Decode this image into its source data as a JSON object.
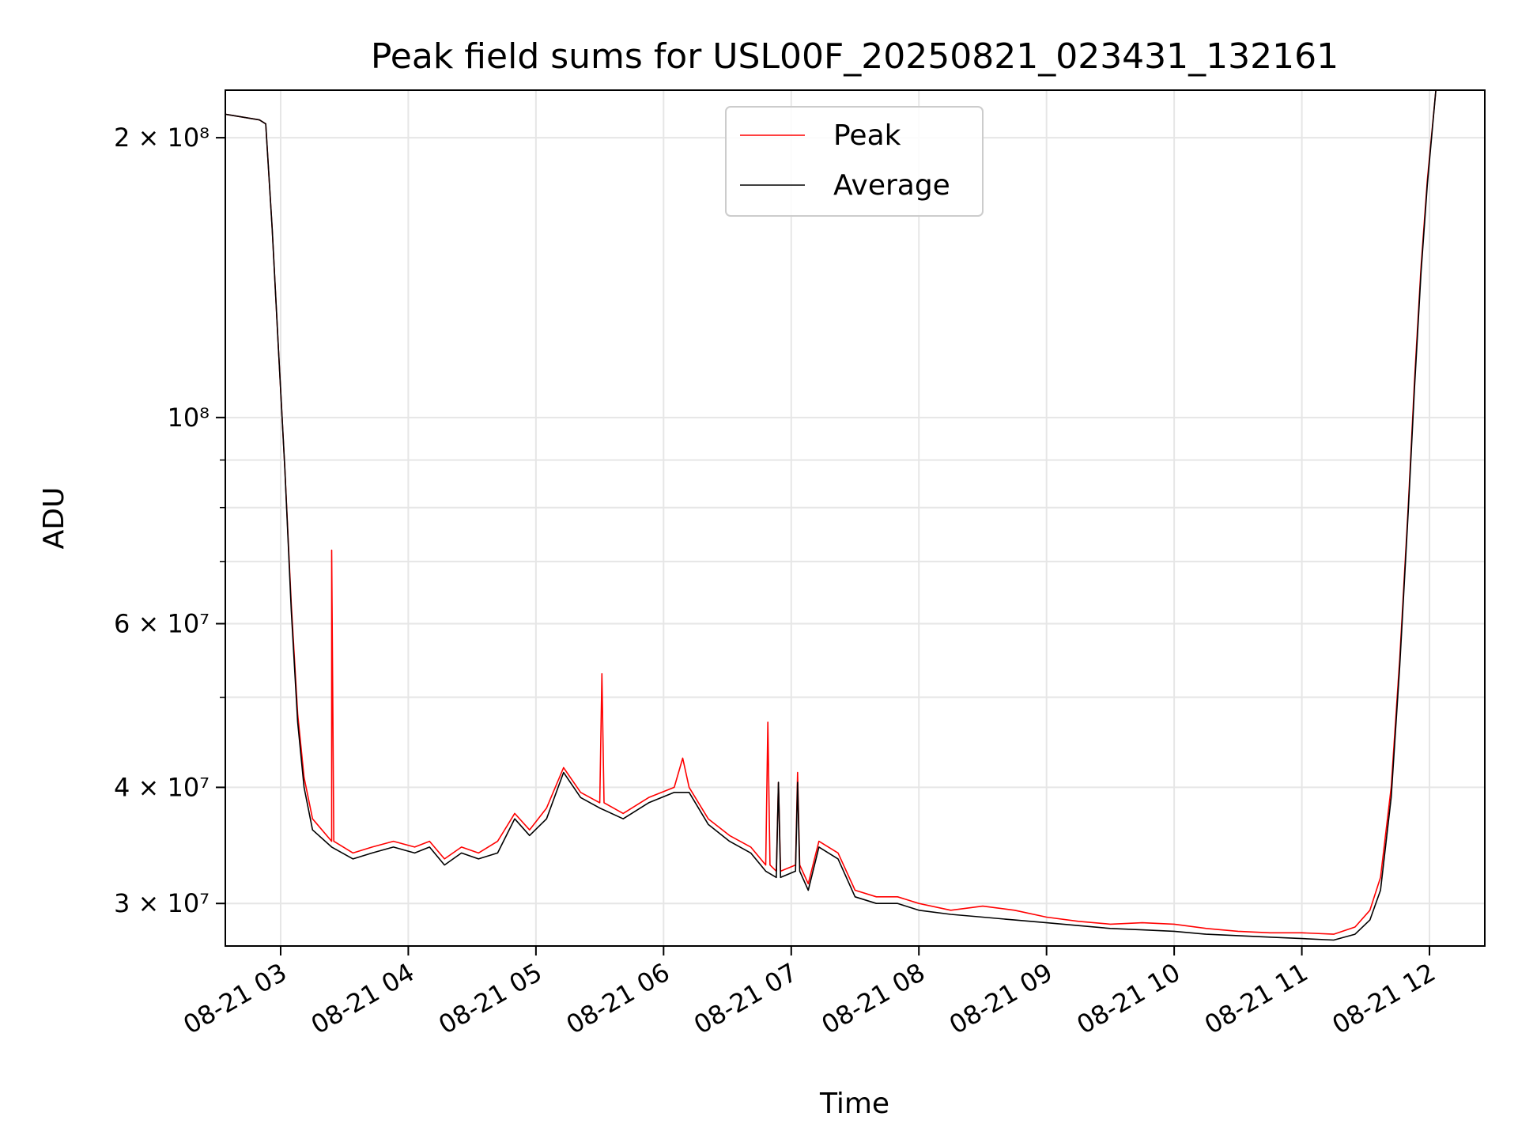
{
  "chart_data": {
    "type": "line",
    "title": "Peak field sums for USL00F_20250821_023431_132161",
    "xlabel": "Time",
    "ylabel": "ADU",
    "yscale": "log",
    "xlim": [
      "2025-08-21 02:34",
      "2025-08-21 12:26"
    ],
    "ylim": [
      27000000,
      225000000
    ],
    "grid": true,
    "legend_position": "upper center",
    "x_ticks": [
      {
        "value": "2025-08-21 03:00",
        "label": "08-21 03"
      },
      {
        "value": "2025-08-21 04:00",
        "label": "08-21 04"
      },
      {
        "value": "2025-08-21 05:00",
        "label": "08-21 05"
      },
      {
        "value": "2025-08-21 06:00",
        "label": "08-21 06"
      },
      {
        "value": "2025-08-21 07:00",
        "label": "08-21 07"
      },
      {
        "value": "2025-08-21 08:00",
        "label": "08-21 08"
      },
      {
        "value": "2025-08-21 09:00",
        "label": "08-21 09"
      },
      {
        "value": "2025-08-21 10:00",
        "label": "08-21 10"
      },
      {
        "value": "2025-08-21 11:00",
        "label": "08-21 11"
      },
      {
        "value": "2025-08-21 12:00",
        "label": "08-21 12"
      }
    ],
    "y_major_ticks": [
      {
        "value": 30000000,
        "label": "3 × 10⁷"
      },
      {
        "value": 40000000,
        "label": "4 × 10⁷"
      },
      {
        "value": 60000000,
        "label": "6 × 10⁷"
      },
      {
        "value": 100000000,
        "label": "10⁸"
      },
      {
        "value": 200000000,
        "label": "2 × 10⁸"
      }
    ],
    "y_minor_ticks": [
      50000000,
      70000000,
      80000000,
      90000000
    ],
    "series": [
      {
        "name": "Peak",
        "color": "#ff0000",
        "points": [
          [
            "2025-08-21 02:34",
            212000000
          ],
          [
            "2025-08-21 02:50",
            209000000
          ],
          [
            "2025-08-21 02:53",
            207000000
          ],
          [
            "2025-08-21 02:56",
            160000000
          ],
          [
            "2025-08-21 02:59",
            118000000
          ],
          [
            "2025-08-21 03:02",
            88000000
          ],
          [
            "2025-08-21 03:05",
            63000000
          ],
          [
            "2025-08-21 03:08",
            48000000
          ],
          [
            "2025-08-21 03:11",
            41000000
          ],
          [
            "2025-08-21 03:15",
            37000000
          ],
          [
            "2025-08-21 03:24",
            35000000
          ],
          [
            "2025-08-21 03:24",
            72000000
          ],
          [
            "2025-08-21 03:25",
            35000000
          ],
          [
            "2025-08-21 03:34",
            34000000
          ],
          [
            "2025-08-21 03:43",
            34500000
          ],
          [
            "2025-08-21 03:53",
            35000000
          ],
          [
            "2025-08-21 04:03",
            34500000
          ],
          [
            "2025-08-21 04:10",
            35000000
          ],
          [
            "2025-08-21 04:17",
            33500000
          ],
          [
            "2025-08-21 04:25",
            34500000
          ],
          [
            "2025-08-21 04:33",
            34000000
          ],
          [
            "2025-08-21 04:42",
            35000000
          ],
          [
            "2025-08-21 04:50",
            37500000
          ],
          [
            "2025-08-21 04:57",
            36000000
          ],
          [
            "2025-08-21 05:05",
            38000000
          ],
          [
            "2025-08-21 05:13",
            42000000
          ],
          [
            "2025-08-21 05:21",
            39500000
          ],
          [
            "2025-08-21 05:30",
            38500000
          ],
          [
            "2025-08-21 05:31",
            53000000
          ],
          [
            "2025-08-21 05:32",
            38500000
          ],
          [
            "2025-08-21 05:41",
            37500000
          ],
          [
            "2025-08-21 05:53",
            39000000
          ],
          [
            "2025-08-21 06:05",
            40000000
          ],
          [
            "2025-08-21 06:09",
            43000000
          ],
          [
            "2025-08-21 06:12",
            40000000
          ],
          [
            "2025-08-21 06:21",
            37000000
          ],
          [
            "2025-08-21 06:31",
            35500000
          ],
          [
            "2025-08-21 06:41",
            34500000
          ],
          [
            "2025-08-21 06:48",
            33000000
          ],
          [
            "2025-08-21 06:49",
            47000000
          ],
          [
            "2025-08-21 06:50",
            33000000
          ],
          [
            "2025-08-21 06:53",
            32500000
          ],
          [
            "2025-08-21 06:54",
            40500000
          ],
          [
            "2025-08-21 06:55",
            32500000
          ],
          [
            "2025-08-21 07:02",
            33000000
          ],
          [
            "2025-08-21 07:03",
            41500000
          ],
          [
            "2025-08-21 07:04",
            33000000
          ],
          [
            "2025-08-21 07:08",
            31500000
          ],
          [
            "2025-08-21 07:13",
            35000000
          ],
          [
            "2025-08-21 07:22",
            34000000
          ],
          [
            "2025-08-21 07:30",
            31000000
          ],
          [
            "2025-08-21 07:40",
            30500000
          ],
          [
            "2025-08-21 07:50",
            30500000
          ],
          [
            "2025-08-21 08:00",
            30000000
          ],
          [
            "2025-08-21 08:15",
            29500000
          ],
          [
            "2025-08-21 08:30",
            29800000
          ],
          [
            "2025-08-21 08:45",
            29500000
          ],
          [
            "2025-08-21 09:00",
            29000000
          ],
          [
            "2025-08-21 09:15",
            28700000
          ],
          [
            "2025-08-21 09:30",
            28500000
          ],
          [
            "2025-08-21 09:45",
            28600000
          ],
          [
            "2025-08-21 10:00",
            28500000
          ],
          [
            "2025-08-21 10:15",
            28200000
          ],
          [
            "2025-08-21 10:30",
            28000000
          ],
          [
            "2025-08-21 10:45",
            27900000
          ],
          [
            "2025-08-21 11:00",
            27900000
          ],
          [
            "2025-08-21 11:15",
            27800000
          ],
          [
            "2025-08-21 11:25",
            28300000
          ],
          [
            "2025-08-21 11:32",
            29500000
          ],
          [
            "2025-08-21 11:37",
            32000000
          ],
          [
            "2025-08-21 11:42",
            40000000
          ],
          [
            "2025-08-21 11:46",
            55000000
          ],
          [
            "2025-08-21 11:50",
            80000000
          ],
          [
            "2025-08-21 11:53",
            110000000
          ],
          [
            "2025-08-21 11:56",
            145000000
          ],
          [
            "2025-08-21 11:59",
            180000000
          ],
          [
            "2025-08-21 12:03",
            225000000
          ]
        ]
      },
      {
        "name": "Average",
        "color": "#000000",
        "points": [
          [
            "2025-08-21 02:34",
            212000000
          ],
          [
            "2025-08-21 02:50",
            209000000
          ],
          [
            "2025-08-21 02:53",
            207000000
          ],
          [
            "2025-08-21 02:56",
            160000000
          ],
          [
            "2025-08-21 02:59",
            118000000
          ],
          [
            "2025-08-21 03:02",
            88000000
          ],
          [
            "2025-08-21 03:05",
            62000000
          ],
          [
            "2025-08-21 03:08",
            47000000
          ],
          [
            "2025-08-21 03:11",
            40000000
          ],
          [
            "2025-08-21 03:15",
            36000000
          ],
          [
            "2025-08-21 03:24",
            34500000
          ],
          [
            "2025-08-21 03:34",
            33500000
          ],
          [
            "2025-08-21 03:43",
            34000000
          ],
          [
            "2025-08-21 03:53",
            34500000
          ],
          [
            "2025-08-21 04:03",
            34000000
          ],
          [
            "2025-08-21 04:10",
            34500000
          ],
          [
            "2025-08-21 04:17",
            33000000
          ],
          [
            "2025-08-21 04:25",
            34000000
          ],
          [
            "2025-08-21 04:33",
            33500000
          ],
          [
            "2025-08-21 04:42",
            34000000
          ],
          [
            "2025-08-21 04:50",
            37000000
          ],
          [
            "2025-08-21 04:57",
            35500000
          ],
          [
            "2025-08-21 05:05",
            37000000
          ],
          [
            "2025-08-21 05:13",
            41500000
          ],
          [
            "2025-08-21 05:21",
            39000000
          ],
          [
            "2025-08-21 05:30",
            38000000
          ],
          [
            "2025-08-21 05:41",
            37000000
          ],
          [
            "2025-08-21 05:53",
            38500000
          ],
          [
            "2025-08-21 06:05",
            39500000
          ],
          [
            "2025-08-21 06:12",
            39500000
          ],
          [
            "2025-08-21 06:21",
            36500000
          ],
          [
            "2025-08-21 06:31",
            35000000
          ],
          [
            "2025-08-21 06:41",
            34000000
          ],
          [
            "2025-08-21 06:48",
            32500000
          ],
          [
            "2025-08-21 06:53",
            32000000
          ],
          [
            "2025-08-21 06:54",
            40500000
          ],
          [
            "2025-08-21 06:55",
            32000000
          ],
          [
            "2025-08-21 07:02",
            32500000
          ],
          [
            "2025-08-21 07:03",
            40500000
          ],
          [
            "2025-08-21 07:04",
            32500000
          ],
          [
            "2025-08-21 07:08",
            31000000
          ],
          [
            "2025-08-21 07:13",
            34500000
          ],
          [
            "2025-08-21 07:22",
            33500000
          ],
          [
            "2025-08-21 07:30",
            30500000
          ],
          [
            "2025-08-21 07:40",
            30000000
          ],
          [
            "2025-08-21 07:50",
            30000000
          ],
          [
            "2025-08-21 08:00",
            29500000
          ],
          [
            "2025-08-21 08:15",
            29200000
          ],
          [
            "2025-08-21 08:30",
            29000000
          ],
          [
            "2025-08-21 08:45",
            28800000
          ],
          [
            "2025-08-21 09:00",
            28600000
          ],
          [
            "2025-08-21 09:15",
            28400000
          ],
          [
            "2025-08-21 09:30",
            28200000
          ],
          [
            "2025-08-21 09:45",
            28100000
          ],
          [
            "2025-08-21 10:00",
            28000000
          ],
          [
            "2025-08-21 10:15",
            27800000
          ],
          [
            "2025-08-21 10:30",
            27700000
          ],
          [
            "2025-08-21 10:45",
            27600000
          ],
          [
            "2025-08-21 11:00",
            27500000
          ],
          [
            "2025-08-21 11:15",
            27400000
          ],
          [
            "2025-08-21 11:25",
            27800000
          ],
          [
            "2025-08-21 11:32",
            28800000
          ],
          [
            "2025-08-21 11:37",
            31000000
          ],
          [
            "2025-08-21 11:42",
            39000000
          ],
          [
            "2025-08-21 11:46",
            54000000
          ],
          [
            "2025-08-21 11:50",
            79000000
          ],
          [
            "2025-08-21 11:53",
            108000000
          ],
          [
            "2025-08-21 11:56",
            143000000
          ],
          [
            "2025-08-21 11:59",
            178000000
          ],
          [
            "2025-08-21 12:03",
            225000000
          ]
        ]
      }
    ]
  }
}
